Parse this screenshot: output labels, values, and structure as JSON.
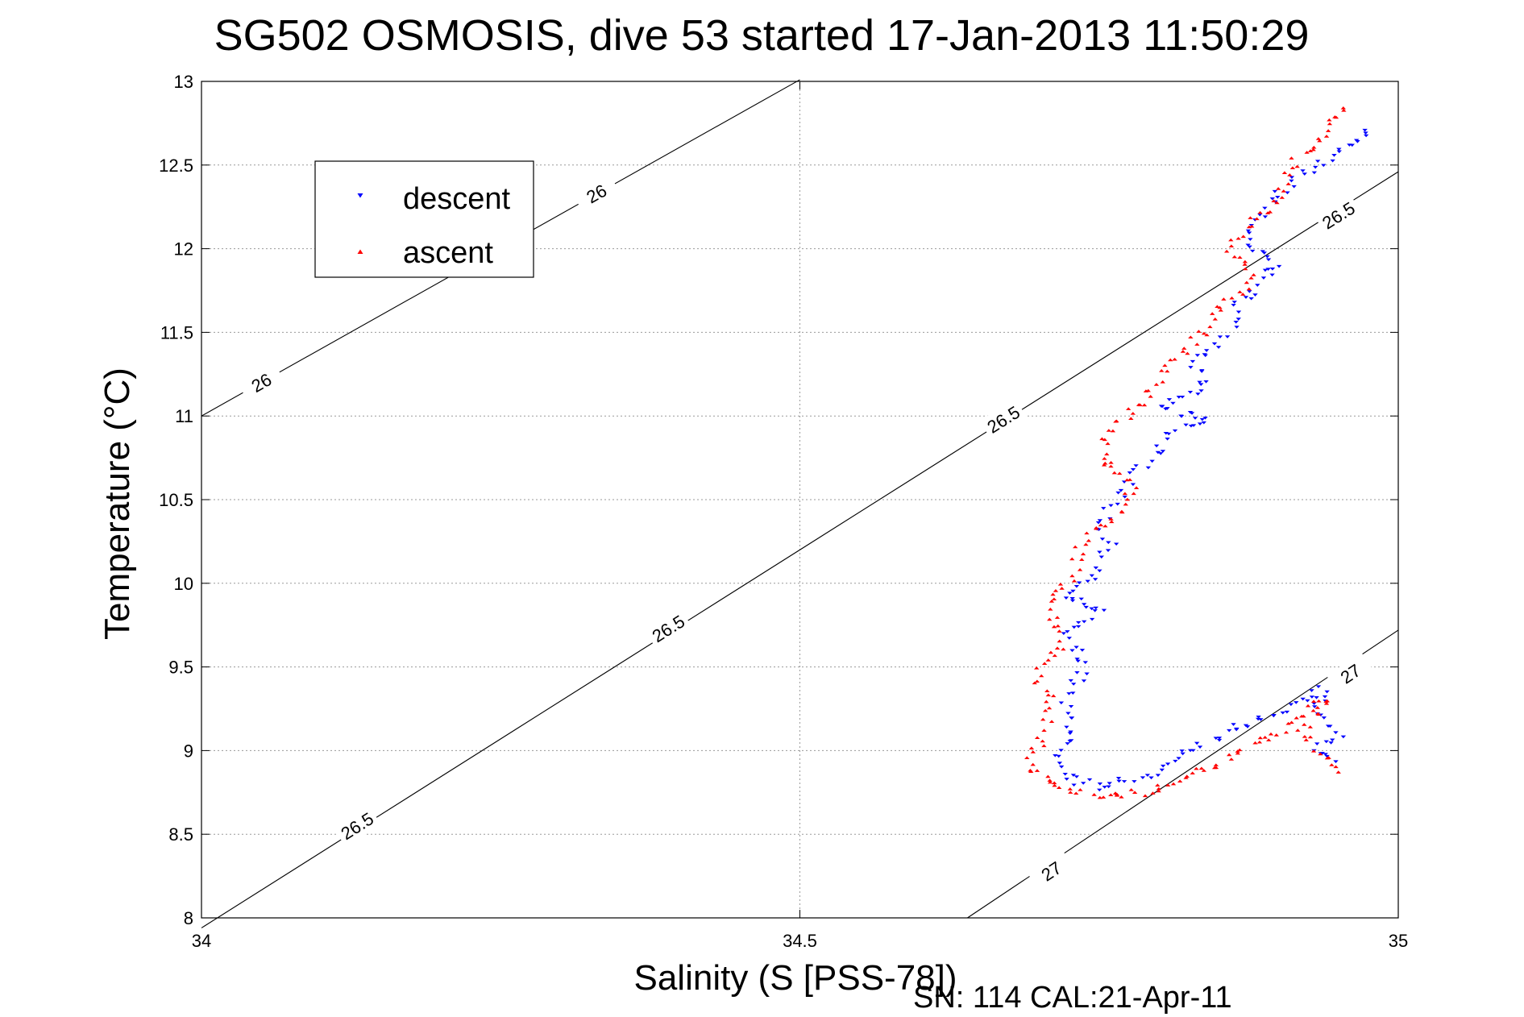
{
  "chart_data": {
    "type": "scatter",
    "title": "SG502 OSMOSIS, dive 53 started 17-Jan-2013 11:50:29",
    "xlabel": "Salinity (S [PSS-78])",
    "ylabel": "Temperature (°C)",
    "footnote": "SN: 114  CAL:21-Apr-11",
    "xlim": [
      34,
      35
    ],
    "ylim": [
      8,
      13
    ],
    "grid": true,
    "xticks": [
      34,
      34.5,
      35
    ],
    "xtick_labels": [
      "34",
      "34.5",
      "35"
    ],
    "yticks": [
      8,
      8.5,
      9,
      9.5,
      10,
      10.5,
      11,
      11.5,
      12,
      12.5,
      13
    ],
    "ytick_labels": [
      "8",
      "8.5",
      "9",
      "9.5",
      "10",
      "10.5",
      "11",
      "11.5",
      "12",
      "12.5",
      "13"
    ],
    "legend": {
      "placement": "upper-left"
    },
    "isopycnals": [
      {
        "label": "26",
        "color": "#000000",
        "points": [
          [
            34.0,
            11.0
          ],
          [
            34.5,
            13.01
          ]
        ],
        "label_positions": [
          [
            34.05,
            11.2
          ],
          [
            34.33,
            12.33
          ]
        ]
      },
      {
        "label": "26.5",
        "color": "#000000",
        "points": [
          [
            34.0,
            7.94
          ],
          [
            35.0,
            12.46
          ]
        ],
        "label_positions": [
          [
            34.13,
            8.55
          ],
          [
            34.39,
            9.73
          ],
          [
            34.67,
            10.98
          ],
          [
            34.95,
            12.2
          ]
        ]
      },
      {
        "label": "27",
        "color": "#000000",
        "points": [
          [
            34.64,
            8.0
          ],
          [
            35.0,
            9.72
          ]
        ],
        "label_positions": [
          [
            34.71,
            8.28
          ],
          [
            34.96,
            9.46
          ]
        ]
      }
    ],
    "series": [
      {
        "name": "descent",
        "color": "#0000ff",
        "marker": "triangle-down",
        "path": [
          [
            34.98,
            12.72
          ],
          [
            34.95,
            12.58
          ],
          [
            34.92,
            12.45
          ],
          [
            34.9,
            12.32
          ],
          [
            34.88,
            12.15
          ],
          [
            34.87,
            12.03
          ],
          [
            34.9,
            11.9
          ],
          [
            34.87,
            11.7
          ],
          [
            34.86,
            11.5
          ],
          [
            34.83,
            11.32
          ],
          [
            34.84,
            11.2
          ],
          [
            34.8,
            11.05
          ],
          [
            34.84,
            10.97
          ],
          [
            34.81,
            10.9
          ],
          [
            34.79,
            10.72
          ],
          [
            34.77,
            10.55
          ],
          [
            34.75,
            10.35
          ],
          [
            34.76,
            10.2
          ],
          [
            34.74,
            10.02
          ],
          [
            34.72,
            9.93
          ],
          [
            34.75,
            9.85
          ],
          [
            34.72,
            9.7
          ],
          [
            34.74,
            9.5
          ],
          [
            34.72,
            9.3
          ],
          [
            34.73,
            9.1
          ],
          [
            34.71,
            8.95
          ],
          [
            34.72,
            8.85
          ],
          [
            34.75,
            8.77
          ],
          [
            34.79,
            8.85
          ],
          [
            34.83,
            9.0
          ],
          [
            34.87,
            9.15
          ],
          [
            34.91,
            9.27
          ],
          [
            34.94,
            9.37
          ],
          [
            34.93,
            9.25
          ],
          [
            34.95,
            9.08
          ],
          [
            34.93,
            9.0
          ],
          [
            34.95,
            8.92
          ]
        ],
        "count": 260
      },
      {
        "name": "ascent",
        "color": "#ff0000",
        "marker": "triangle-up",
        "path": [
          [
            34.96,
            12.86
          ],
          [
            34.93,
            12.63
          ],
          [
            34.91,
            12.5
          ],
          [
            34.9,
            12.3
          ],
          [
            34.87,
            12.12
          ],
          [
            34.86,
            12.0
          ],
          [
            34.88,
            11.85
          ],
          [
            34.85,
            11.62
          ],
          [
            34.83,
            11.45
          ],
          [
            34.8,
            11.25
          ],
          [
            34.79,
            11.1
          ],
          [
            34.76,
            10.92
          ],
          [
            34.75,
            10.75
          ],
          [
            34.78,
            10.6
          ],
          [
            34.77,
            10.45
          ],
          [
            34.74,
            10.3
          ],
          [
            34.73,
            10.1
          ],
          [
            34.71,
            9.85
          ],
          [
            34.72,
            9.65
          ],
          [
            34.7,
            9.45
          ],
          [
            34.71,
            9.25
          ],
          [
            34.7,
            9.05
          ],
          [
            34.69,
            8.9
          ],
          [
            34.73,
            8.75
          ],
          [
            34.77,
            8.72
          ],
          [
            34.81,
            8.8
          ],
          [
            34.85,
            8.92
          ],
          [
            34.89,
            9.08
          ],
          [
            34.92,
            9.2
          ],
          [
            34.94,
            9.32
          ],
          [
            34.92,
            9.12
          ],
          [
            34.93,
            9.02
          ],
          [
            34.95,
            8.87
          ]
        ],
        "count": 240
      }
    ]
  }
}
